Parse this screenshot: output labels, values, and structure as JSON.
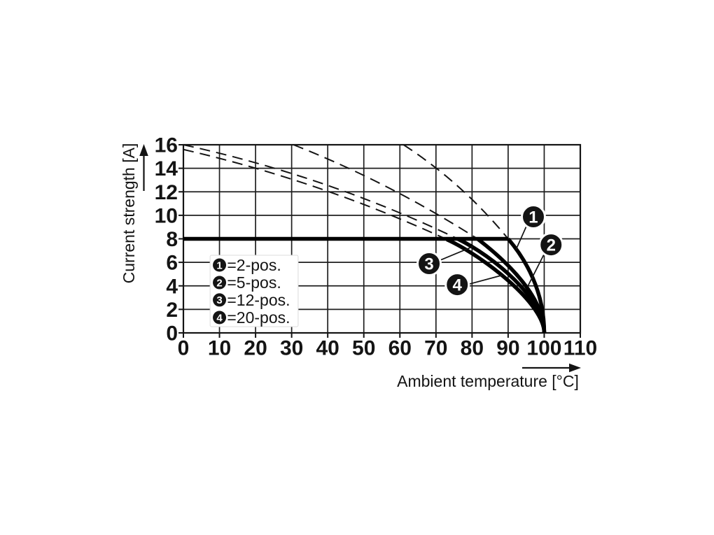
{
  "figure": {
    "background": "#ffffff",
    "ink_color": "#141414",
    "grid_color": "#1f1f1f"
  },
  "chart_data": {
    "type": "line",
    "title": "",
    "xlabel": "Ambient temperature [°C]",
    "ylabel": "Current strength [A]",
    "xlim": [
      0,
      110
    ],
    "ylim": [
      0,
      16
    ],
    "xticks": [
      0,
      10,
      20,
      30,
      40,
      50,
      60,
      70,
      80,
      90,
      100,
      110
    ],
    "yticks": [
      0,
      2,
      4,
      6,
      8,
      10,
      12,
      14,
      16
    ],
    "grid": true,
    "rated_current_line": {
      "y": 8,
      "x_start": 0,
      "x_end": 90
    },
    "series": [
      {
        "num": "1",
        "name": "2-pos.",
        "dashed_curve": {
          "start": [
            61,
            16
          ],
          "ctrl": [
            77.5,
            12.7
          ],
          "end": [
            90,
            8
          ]
        },
        "solid_curve": {
          "start": [
            90,
            8
          ],
          "c1": [
            95,
            6.2
          ],
          "c2": [
            100,
            3.5
          ],
          "end": [
            100,
            0
          ]
        }
      },
      {
        "num": "2",
        "name": "5-pos.",
        "dashed_curve": {
          "start": [
            30.5,
            16
          ],
          "ctrl": [
            57,
            12.8
          ],
          "end": [
            81.5,
            8
          ]
        },
        "solid_curve": {
          "start": [
            81.5,
            8
          ],
          "c1": [
            90,
            6.0
          ],
          "c2": [
            100,
            3.0
          ],
          "end": [
            100,
            0
          ]
        }
      },
      {
        "num": "3",
        "name": "12-pos.",
        "dashed_curve": {
          "start": [
            0,
            16
          ],
          "ctrl": [
            40,
            13.3
          ],
          "end": [
            76,
            8
          ]
        },
        "solid_curve": {
          "start": [
            76,
            8
          ],
          "c1": [
            86,
            6.5
          ],
          "c2": [
            100,
            2.9
          ],
          "end": [
            100,
            0
          ]
        }
      },
      {
        "num": "4",
        "name": "20-pos.",
        "dashed_curve": {
          "start": [
            0,
            15.6
          ],
          "ctrl": [
            38,
            12.9
          ],
          "end": [
            73,
            7.95
          ]
        },
        "solid_curve": {
          "start": [
            73,
            7.95
          ],
          "c1": [
            83,
            6.55
          ],
          "c2": [
            100,
            2.5
          ],
          "end": [
            100,
            0
          ]
        }
      }
    ],
    "legend": {
      "box": {
        "x0": 7.4,
        "x1": 31.8,
        "y0": 0.53,
        "y1": 6.6
      },
      "rows": [
        {
          "num": "1",
          "label": "=2-pos.",
          "cy": 5.77
        },
        {
          "num": "2",
          "label": "=5-pos.",
          "cy": 4.28
        },
        {
          "num": "3",
          "label": "=12-pos.",
          "cy": 2.8
        },
        {
          "num": "4",
          "label": "=20-pos.",
          "cy": 1.31
        }
      ],
      "badge_cx": 10.0,
      "label_x": 12.1
    },
    "callouts": [
      {
        "num": "1",
        "badge": [
          97.0,
          9.87
        ],
        "line_from": [
          95.1,
          9.1
        ],
        "line_to": [
          92.2,
          7.1
        ]
      },
      {
        "num": "2",
        "badge": [
          101.9,
          7.49
        ],
        "line_from": [
          99.9,
          6.66
        ],
        "line_to": [
          95.5,
          4.0
        ]
      },
      {
        "num": "3",
        "badge": [
          68.1,
          5.89
        ],
        "line_from": [
          71.2,
          6.19
        ],
        "line_to": [
          80.3,
          7.35
        ]
      },
      {
        "num": "4",
        "badge": [
          75.9,
          4.1
        ],
        "line_from": [
          79.3,
          4.16
        ],
        "line_to": [
          88.3,
          4.9
        ]
      }
    ]
  }
}
